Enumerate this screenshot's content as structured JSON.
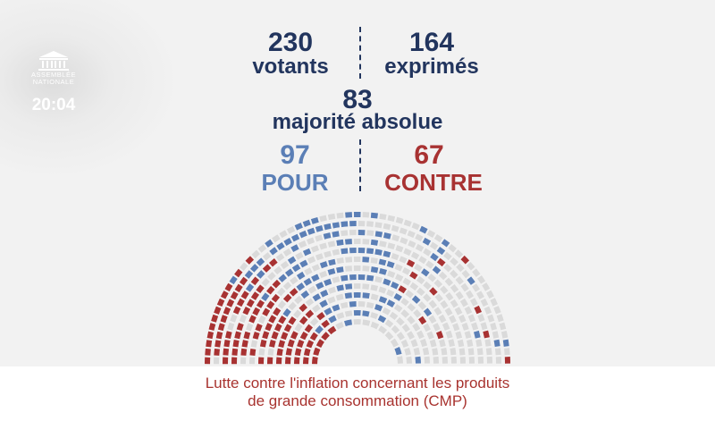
{
  "channel": {
    "logo_line1": "ASSEMBLÉE",
    "logo_line2": "NATIONALE",
    "time": "20:04"
  },
  "vote": {
    "votants_count": "230",
    "votants_label": "votants",
    "exprimes_count": "164",
    "exprimes_label": "exprimés",
    "majorite_count": "83",
    "majorite_label": "majorité absolue",
    "pour_count": "97",
    "pour_label": "POUR",
    "contre_count": "67",
    "contre_label": "CONTRE"
  },
  "colors": {
    "navy": "#22355e",
    "pour": "#5b7fb6",
    "contre": "#a83232",
    "empty_seat": "#dadada"
  },
  "caption": {
    "line1": "Lutte contre l'inflation concernant les produits",
    "line2": "de grande consommation (CMP)"
  }
}
